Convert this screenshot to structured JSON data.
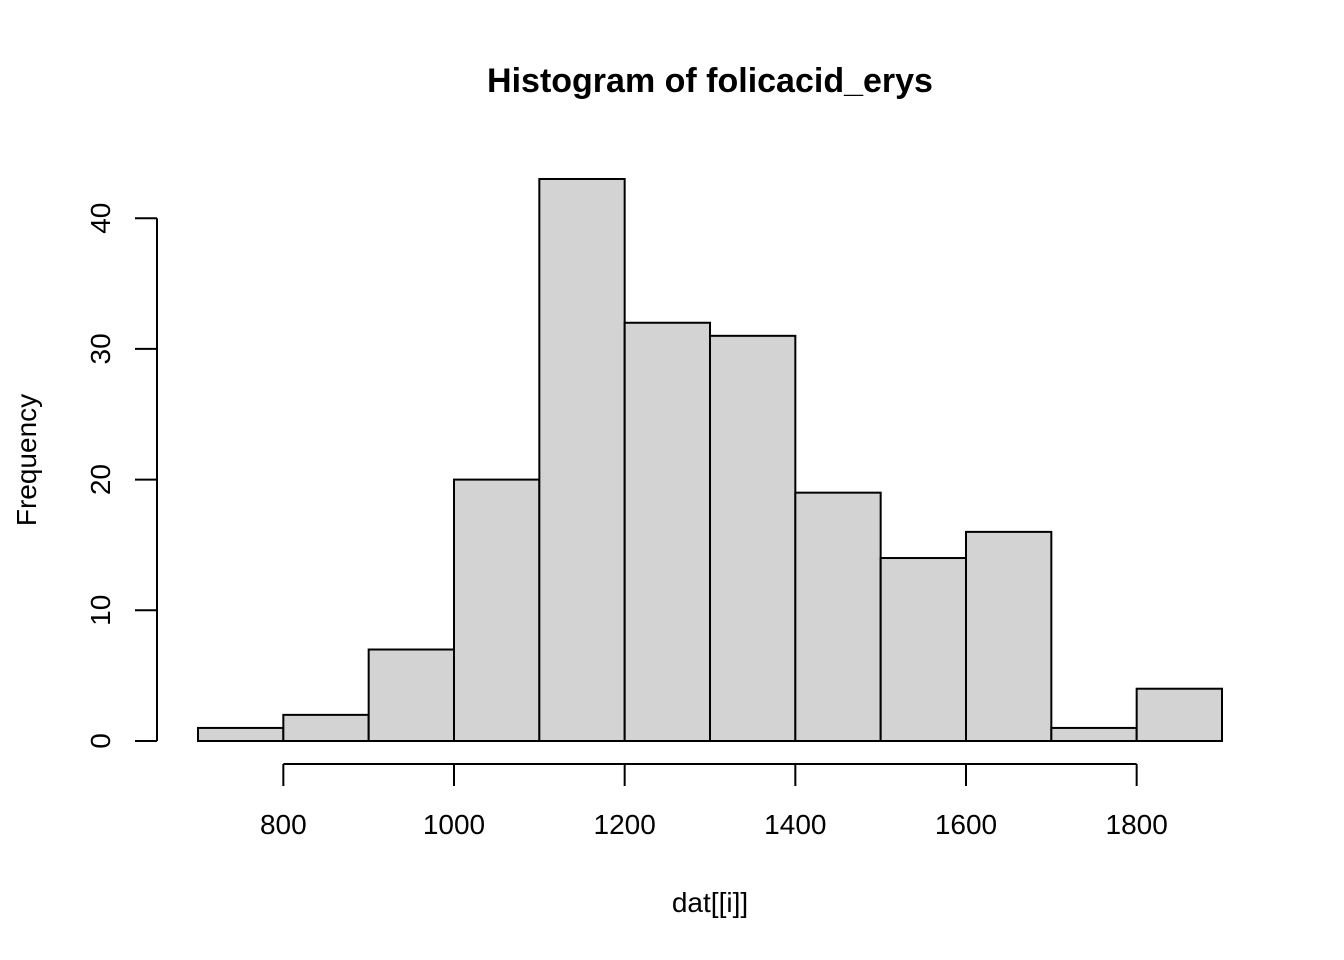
{
  "chart_data": {
    "type": "bar",
    "title": "Histogram of folicacid_erys",
    "xlabel": "dat[[i]]",
    "ylabel": "Frequency",
    "bins": [
      {
        "start": 700,
        "end": 800,
        "count": 1
      },
      {
        "start": 800,
        "end": 900,
        "count": 2
      },
      {
        "start": 900,
        "end": 1000,
        "count": 7
      },
      {
        "start": 1000,
        "end": 1100,
        "count": 20
      },
      {
        "start": 1100,
        "end": 1200,
        "count": 43
      },
      {
        "start": 1200,
        "end": 1300,
        "count": 32
      },
      {
        "start": 1300,
        "end": 1400,
        "count": 31
      },
      {
        "start": 1400,
        "end": 1500,
        "count": 19
      },
      {
        "start": 1500,
        "end": 1600,
        "count": 14
      },
      {
        "start": 1600,
        "end": 1700,
        "count": 16
      },
      {
        "start": 1700,
        "end": 1800,
        "count": 1
      },
      {
        "start": 1800,
        "end": 1900,
        "count": 4
      }
    ],
    "x_ticks": [
      "800",
      "1000",
      "1200",
      "1400",
      "1600",
      "1800"
    ],
    "y_ticks": [
      "0",
      "10",
      "20",
      "30",
      "40"
    ],
    "xlim": [
      700,
      1900
    ],
    "ylim": [
      0,
      43
    ],
    "bar_color": "#d3d3d3",
    "grid": false,
    "legend": "none"
  }
}
